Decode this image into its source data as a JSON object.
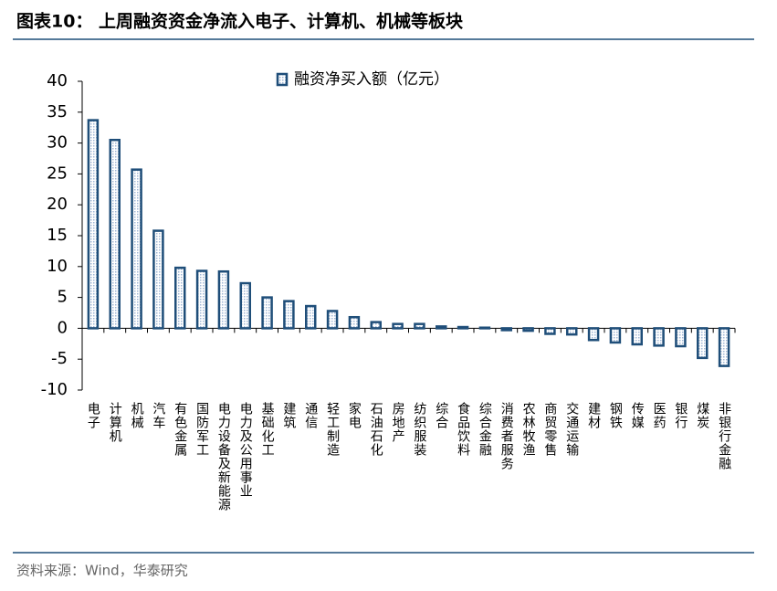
{
  "header": {
    "title": "图表10： 上周融资资金净流入电子、计算机、机械等板块"
  },
  "footer": {
    "source": "资料来源：Wind，华泰研究"
  },
  "chart_data": {
    "type": "bar",
    "categories": [
      "电子",
      "计算机",
      "机械",
      "汽车",
      "有色金属",
      "国防军工",
      "电力设备及新能源",
      "电力及公用事业",
      "基础化工",
      "建筑",
      "通信",
      "轻工制造",
      "家电",
      "石油石化",
      "房地产",
      "纺织服装",
      "综合",
      "食品饮料",
      "综合金融",
      "消费者服务",
      "农林牧渔",
      "商贸零售",
      "交通运输",
      "建材",
      "钢铁",
      "传媒",
      "医药",
      "银行",
      "煤炭",
      "非银行金融"
    ],
    "series": [
      {
        "name": "融资净买入额（亿元）",
        "color": "#1f4e79",
        "values": [
          33.7,
          30.5,
          25.7,
          15.8,
          9.8,
          9.3,
          9.2,
          7.3,
          5.0,
          4.4,
          3.6,
          2.8,
          1.8,
          1.0,
          0.7,
          0.7,
          0.3,
          0.2,
          0.1,
          -0.3,
          -0.4,
          -0.9,
          -1.0,
          -1.9,
          -2.3,
          -2.6,
          -2.8,
          -2.9,
          -4.8,
          -6.1
        ]
      }
    ],
    "ylim": [
      -10,
      40
    ],
    "yticks": [
      -10,
      -5,
      0,
      5,
      10,
      15,
      20,
      25,
      30,
      35,
      40
    ],
    "legend": "top"
  }
}
